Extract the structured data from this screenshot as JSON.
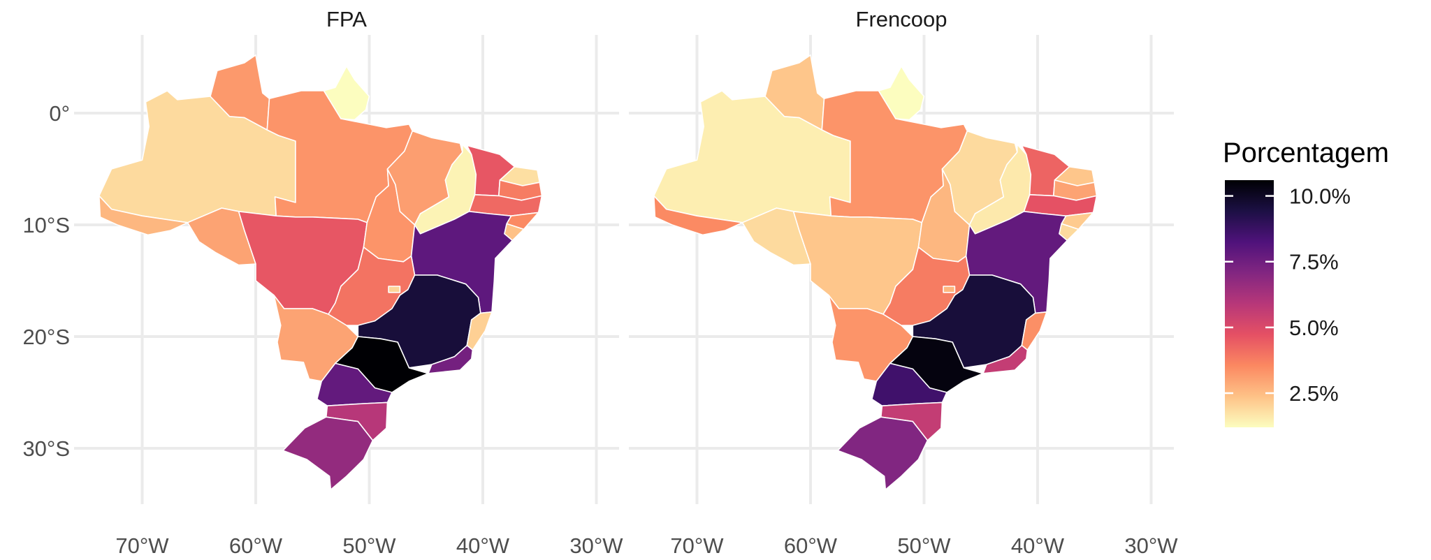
{
  "chart_data": {
    "type": "choropleth",
    "panels": [
      {
        "title": "FPA"
      },
      {
        "title": "Frencoop"
      }
    ],
    "x_ticks": [
      "70°W",
      "60°W",
      "50°W",
      "40°W",
      "30°W"
    ],
    "y_ticks": [
      "0°",
      "10°S",
      "20°S",
      "30°S"
    ],
    "lon_range": [
      -76,
      -28
    ],
    "lat_range": [
      -35,
      7
    ],
    "legend": {
      "title": "Porcentagem",
      "ticks": [
        "10.0%",
        "7.5%",
        "5.0%",
        "2.5%"
      ],
      "tick_values": [
        10.0,
        7.5,
        5.0,
        2.5
      ],
      "range": [
        1.2,
        10.6
      ],
      "palette": [
        "#fcfdbf",
        "#fec287",
        "#fb8861",
        "#e55064",
        "#b73779",
        "#822681",
        "#4f127b",
        "#1c1044",
        "#000004"
      ]
    },
    "regions": [
      "AM",
      "AC",
      "RO",
      "RR",
      "PA",
      "AP",
      "MT",
      "MS",
      "TO",
      "MA",
      "PI",
      "CE",
      "RN",
      "PB",
      "PE",
      "AL",
      "SE",
      "BA",
      "GO",
      "DF",
      "MG",
      "ES",
      "RJ",
      "SP",
      "PR",
      "SC",
      "RS"
    ],
    "values": {
      "FPA": {
        "AM": 1.9,
        "AC": 2.6,
        "RO": 3.0,
        "RR": 3.2,
        "PA": 3.3,
        "AP": 1.2,
        "MT": 4.6,
        "MS": 3.0,
        "TO": 3.3,
        "MA": 3.1,
        "PI": 1.4,
        "CE": 4.6,
        "RN": 1.8,
        "PB": 3.8,
        "PE": 4.2,
        "AL": 3.5,
        "SE": 2.4,
        "BA": 7.9,
        "GO": 4.0,
        "DF": 2.0,
        "MG": 9.6,
        "ES": 2.1,
        "RJ": 7.4,
        "SP": 10.6,
        "PR": 7.8,
        "SC": 5.9,
        "RS": 6.7
      },
      "Frencoop": {
        "AM": 1.5,
        "AC": 3.5,
        "RO": 1.9,
        "RR": 2.3,
        "PA": 3.3,
        "AP": 1.1,
        "MT": 2.3,
        "MS": 3.3,
        "TO": 2.6,
        "MA": 1.9,
        "PI": 1.6,
        "CE": 4.3,
        "RN": 2.3,
        "PB": 3.0,
        "PE": 4.7,
        "AL": 2.2,
        "SE": 1.9,
        "BA": 7.8,
        "GO": 3.8,
        "DF": 2.6,
        "MG": 9.6,
        "ES": 3.4,
        "RJ": 5.6,
        "SP": 10.4,
        "PR": 8.6,
        "SC": 5.6,
        "RS": 7.1
      }
    }
  }
}
